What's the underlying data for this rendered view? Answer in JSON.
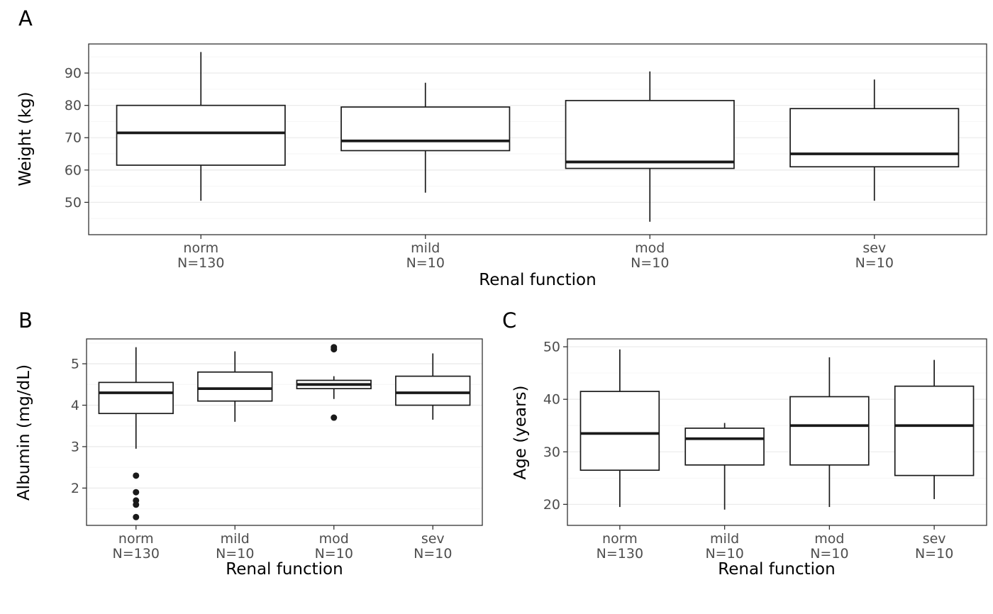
{
  "style": {
    "background": "#ffffff",
    "grid_major": "#ebebeb",
    "grid_minor": "#f6f6f6",
    "panel_border": "#333333",
    "box_color": "#1a1a1a",
    "box_fill": "#ffffff",
    "tick_color": "#333333",
    "tick_text": "#4d4d4d",
    "title_text": "#000000"
  },
  "chart_data": [
    {
      "type": "boxplot",
      "panel_label": "A",
      "ylabel": "Weight (kg)",
      "xlabel": "Renal function",
      "categories": [
        "norm",
        "mild",
        "mod",
        "sev"
      ],
      "category_sublabels": [
        "N=130",
        "N=10",
        "N=10",
        "N=10"
      ],
      "yticks": [
        50,
        60,
        70,
        80,
        90
      ],
      "ylim": [
        40,
        99
      ],
      "grid": true,
      "legend": "none",
      "boxes": [
        {
          "category": "norm",
          "whisker_low": 50.5,
          "q1": 61.5,
          "median": 71.5,
          "q3": 80.0,
          "whisker_high": 96.5,
          "outliers": []
        },
        {
          "category": "mild",
          "whisker_low": 53.0,
          "q1": 66.0,
          "median": 69.0,
          "q3": 79.5,
          "whisker_high": 87.0,
          "outliers": []
        },
        {
          "category": "mod",
          "whisker_low": 44.0,
          "q1": 60.5,
          "median": 62.5,
          "q3": 81.5,
          "whisker_high": 90.5,
          "outliers": []
        },
        {
          "category": "sev",
          "whisker_low": 50.5,
          "q1": 61.0,
          "median": 65.0,
          "q3": 79.0,
          "whisker_high": 88.0,
          "outliers": []
        }
      ]
    },
    {
      "type": "boxplot",
      "panel_label": "B",
      "ylabel": "Albumin (mg/dL)",
      "xlabel": "Renal function",
      "categories": [
        "norm",
        "mild",
        "mod",
        "sev"
      ],
      "category_sublabels": [
        "N=130",
        "N=10",
        "N=10",
        "N=10"
      ],
      "yticks": [
        2,
        3,
        4,
        5
      ],
      "ylim": [
        1.1,
        5.6
      ],
      "grid": true,
      "legend": "none",
      "boxes": [
        {
          "category": "norm",
          "whisker_low": 2.95,
          "q1": 3.8,
          "median": 4.3,
          "q3": 4.55,
          "whisker_high": 5.4,
          "outliers": [
            2.3,
            1.9,
            1.7,
            1.6,
            1.3
          ]
        },
        {
          "category": "mild",
          "whisker_low": 3.6,
          "q1": 4.1,
          "median": 4.4,
          "q3": 4.8,
          "whisker_high": 5.3,
          "outliers": []
        },
        {
          "category": "mod",
          "whisker_low": 4.15,
          "q1": 4.4,
          "median": 4.5,
          "q3": 4.6,
          "whisker_high": 4.7,
          "outliers": [
            5.4,
            5.35,
            3.7
          ]
        },
        {
          "category": "sev",
          "whisker_low": 3.65,
          "q1": 4.0,
          "median": 4.3,
          "q3": 4.7,
          "whisker_high": 5.25,
          "outliers": []
        }
      ]
    },
    {
      "type": "boxplot",
      "panel_label": "C",
      "ylabel": "Age (years)",
      "xlabel": "Renal function",
      "categories": [
        "norm",
        "mild",
        "mod",
        "sev"
      ],
      "category_sublabels": [
        "N=130",
        "N=10",
        "N=10",
        "N=10"
      ],
      "yticks": [
        20,
        30,
        40,
        50
      ],
      "ylim": [
        16,
        51.5
      ],
      "grid": true,
      "legend": "none",
      "boxes": [
        {
          "category": "norm",
          "whisker_low": 19.5,
          "q1": 26.5,
          "median": 33.5,
          "q3": 41.5,
          "whisker_high": 49.5,
          "outliers": []
        },
        {
          "category": "mild",
          "whisker_low": 19.0,
          "q1": 27.5,
          "median": 32.5,
          "q3": 34.5,
          "whisker_high": 35.5,
          "outliers": []
        },
        {
          "category": "mod",
          "whisker_low": 19.5,
          "q1": 27.5,
          "median": 35.0,
          "q3": 40.5,
          "whisker_high": 48.0,
          "outliers": []
        },
        {
          "category": "sev",
          "whisker_low": 21.0,
          "q1": 25.5,
          "median": 35.0,
          "q3": 42.5,
          "whisker_high": 47.5,
          "outliers": []
        }
      ]
    }
  ]
}
